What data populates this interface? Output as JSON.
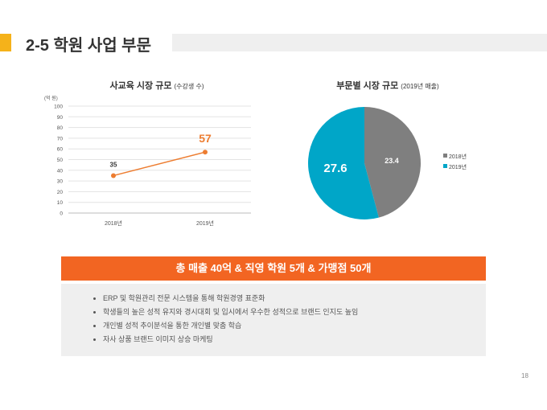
{
  "header": {
    "title": "2-5 학원 사업 부문"
  },
  "chart_data": [
    {
      "type": "line",
      "title": "사교육 시장 규모",
      "subtitle": "(수강생 수)",
      "ylabel": "(억 원)",
      "categories": [
        "2018년",
        "2019년"
      ],
      "values": [
        35,
        57
      ],
      "data_labels": [
        "35",
        "57"
      ],
      "ylim": [
        0,
        100
      ],
      "yticks": [
        "0",
        "10",
        "20",
        "30",
        "40",
        "50",
        "60",
        "70",
        "80",
        "90",
        "100"
      ],
      "color": "#ed7d31",
      "grid": true
    },
    {
      "type": "pie",
      "title": "부문별 시장 규모",
      "subtitle": "(2019년 매출)",
      "labels": [
        "2018년",
        "2019년"
      ],
      "values": [
        23.4,
        27.6
      ],
      "data_labels": [
        "23.4",
        "27.6"
      ],
      "colors": [
        "#7f7f7f",
        "#00a6c8"
      ],
      "legend": "right"
    }
  ],
  "banner": "총 매출 40억 & 직영 학원 5개 & 가맹점 50개",
  "bullets": [
    "ERP 및 학원관리 전문 시스템을 통해 학원경영 표준화",
    "학생들의 높은 성적 유지와 경시대회 및 입시에서 우수한 성적으로 브랜드 인지도 높임",
    "개인별 성적 추이분석을 통한 개인별 맞춤 학습",
    "자사 상품 브랜드 이미지 상승 마케팅"
  ],
  "page_number": "18"
}
